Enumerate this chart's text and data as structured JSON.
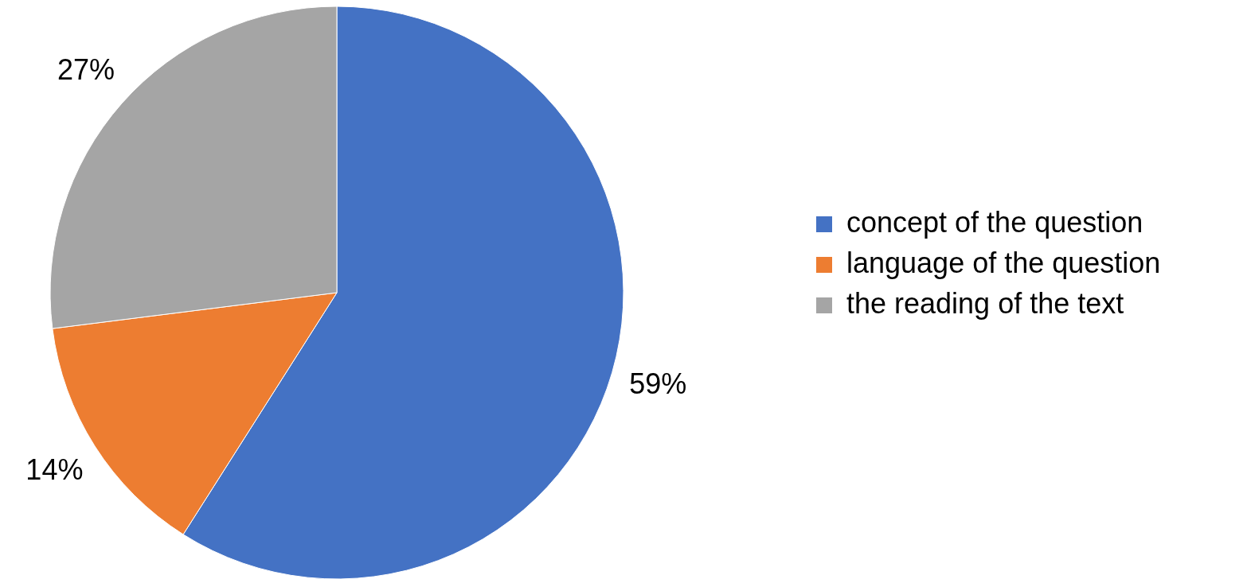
{
  "chart_data": {
    "type": "pie",
    "categories": [
      "concept of the question",
      "language of the question",
      "the reading of the text"
    ],
    "values": [
      59,
      14,
      27
    ],
    "colors": [
      "#4472c4",
      "#ed7d31",
      "#a5a5a5"
    ],
    "value_labels": [
      "59%",
      "14%",
      "27%"
    ],
    "legend": "right"
  }
}
